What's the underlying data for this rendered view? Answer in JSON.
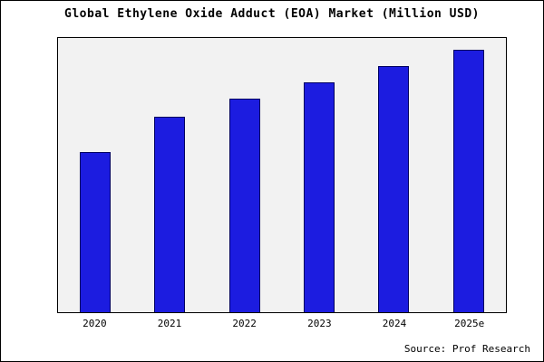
{
  "title": "Global Ethylene Oxide Adduct (EOA) Market (Million USD)",
  "source": "Source: Prof Research",
  "colors": {
    "bar_fill": "#1c1ce0",
    "bar_border": "#000060",
    "plot_bg": "#f2f2f2",
    "frame": "#000000"
  },
  "chart_data": {
    "type": "bar",
    "categories": [
      "2020",
      "2021",
      "2022",
      "2023",
      "2024",
      "2025e"
    ],
    "values": [
      180,
      220,
      240,
      258,
      276,
      295
    ],
    "title": "Global Ethylene Oxide Adduct (EOA) Market (Million USD)",
    "xlabel": "",
    "ylabel": "",
    "ylim": [
      0,
      308
    ],
    "grid": false,
    "legend": false,
    "annotations": [
      "Source: Prof Research"
    ]
  }
}
